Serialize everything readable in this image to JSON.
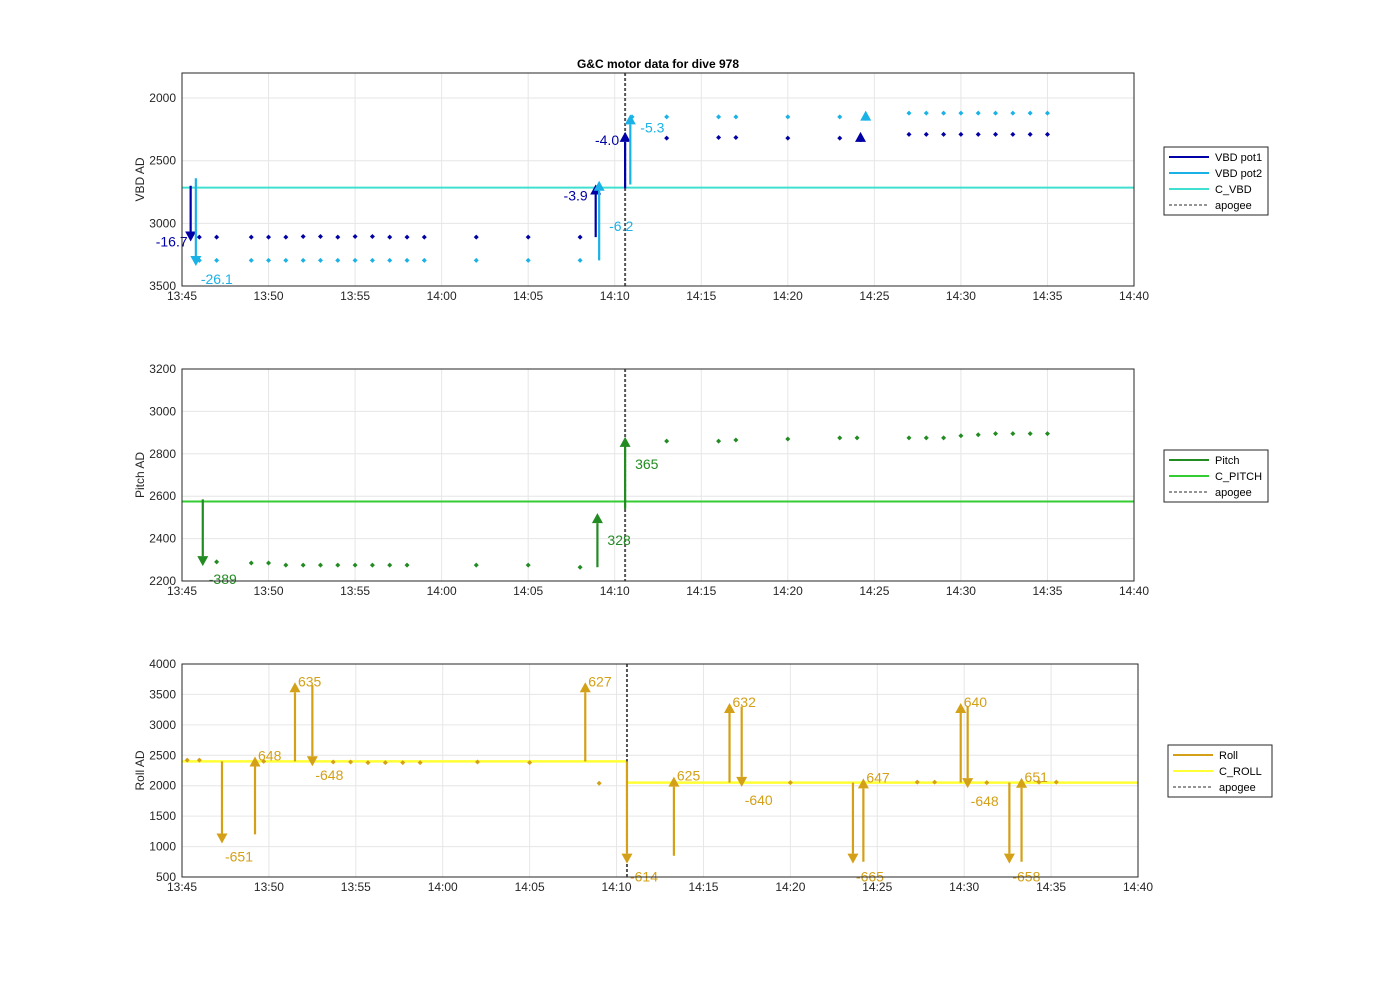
{
  "figure": {
    "title": "G&C motor data for dive 978"
  },
  "chart_data": [
    {
      "type": "scatter",
      "id": "vbd",
      "ylabel": "VBD AD",
      "ylim": [
        3500,
        1800
      ],
      "yticks": [
        2000,
        2500,
        3000,
        3500
      ],
      "xlim": [
        "13:45",
        "14:40"
      ],
      "xticks": [
        "13:45",
        "13:50",
        "13:55",
        "14:00",
        "14:05",
        "14:10",
        "14:15",
        "14:20",
        "14:25",
        "14:30",
        "14:35",
        "14:40"
      ],
      "grid": true,
      "legend_position": "right",
      "legend": [
        "VBD pot1",
        "VBD pot2",
        "C_VBD",
        "apogee"
      ],
      "colors": {
        "pot1": "#0000a6",
        "pot2": "#1ab2e6",
        "c_vbd": "#40e0d0",
        "apogee": "#555555"
      },
      "apogee": "14:10.6",
      "reference_lines": [
        {
          "name": "C_VBD",
          "y": 2715
        }
      ],
      "series": [
        {
          "name": "VBD pot1",
          "x": [
            "13:46",
            "13:47",
            "13:49",
            "13:50",
            "13:51",
            "13:52",
            "13:53",
            "13:54",
            "13:55",
            "13:56",
            "13:57",
            "13:58",
            "13:59",
            "14:02",
            "14:05",
            "14:08",
            "14:13",
            "14:16",
            "14:17",
            "14:20",
            "14:23",
            "14:27",
            "14:28",
            "14:29",
            "14:30",
            "14:31",
            "14:32",
            "14:33",
            "14:34",
            "14:35"
          ],
          "values": [
            3110,
            3110,
            3110,
            3110,
            3110,
            3105,
            3105,
            3110,
            3105,
            3105,
            3110,
            3110,
            3110,
            3110,
            3110,
            3110,
            2320,
            2315,
            2315,
            2320,
            2320,
            2290,
            2290,
            2290,
            2290,
            2290,
            2290,
            2290,
            2290,
            2290
          ]
        },
        {
          "name": "VBD pot2",
          "x": [
            "13:46",
            "13:47",
            "13:49",
            "13:50",
            "13:51",
            "13:52",
            "13:53",
            "13:54",
            "13:55",
            "13:56",
            "13:57",
            "13:58",
            "13:59",
            "14:02",
            "14:05",
            "14:08",
            "14:11",
            "14:13",
            "14:16",
            "14:17",
            "14:20",
            "14:23",
            "14:27",
            "14:28",
            "14:29",
            "14:30",
            "14:31",
            "14:32",
            "14:33",
            "14:34",
            "14:35"
          ],
          "values": [
            3295,
            3295,
            3295,
            3295,
            3295,
            3295,
            3295,
            3295,
            3295,
            3295,
            3295,
            3295,
            3295,
            3295,
            3295,
            3295,
            2150,
            2150,
            2150,
            2150,
            2150,
            2150,
            2120,
            2120,
            2120,
            2120,
            2120,
            2120,
            2120,
            2120,
            2120
          ]
        }
      ],
      "moves": [
        {
          "series": "VBD pot1",
          "x": "13:45.5",
          "from": 2700,
          "to": 3145,
          "label": "-16.7"
        },
        {
          "series": "VBD pot2",
          "x": "13:45.8",
          "from": 2640,
          "to": 3340,
          "label": "-26.1"
        },
        {
          "series": "VBD pot1",
          "x": "14:08.9",
          "from": 3110,
          "to": 2690,
          "label": "-3.9"
        },
        {
          "series": "VBD pot2",
          "x": "14:09.1",
          "from": 3295,
          "to": 2660,
          "label": "-6.2"
        },
        {
          "series": "VBD pot1",
          "x": "14:10.6",
          "from": 2720,
          "to": 2270,
          "label": "-4.0"
        },
        {
          "series": "VBD pot2",
          "x": "14:10.9",
          "from": 2690,
          "to": 2130,
          "label": "-5.3"
        },
        {
          "series": "VBD pot1",
          "x": "14:24.2",
          "from": 2300,
          "to": 2270,
          "label": ""
        },
        {
          "series": "VBD pot2",
          "x": "14:24.5",
          "from": 2140,
          "to": 2100,
          "label": ""
        }
      ]
    },
    {
      "type": "scatter",
      "id": "pitch",
      "ylabel": "Pitch AD",
      "ylim": [
        2200,
        3200
      ],
      "yticks": [
        2200,
        2400,
        2600,
        2800,
        3000,
        3200
      ],
      "xlim": [
        "13:45",
        "14:40"
      ],
      "xticks": [
        "13:45",
        "13:50",
        "13:55",
        "14:00",
        "14:05",
        "14:10",
        "14:15",
        "14:20",
        "14:25",
        "14:30",
        "14:35",
        "14:40"
      ],
      "grid": true,
      "legend_position": "right",
      "legend": [
        "Pitch",
        "C_PITCH",
        "apogee"
      ],
      "colors": {
        "pitch": "#228b22",
        "c_pitch": "#33cc33",
        "apogee": "#555555"
      },
      "apogee": "14:10.6",
      "reference_lines": [
        {
          "name": "C_PITCH",
          "y": 2575
        }
      ],
      "series": [
        {
          "name": "Pitch",
          "x": [
            "13:47",
            "13:49",
            "13:50",
            "13:51",
            "13:52",
            "13:53",
            "13:54",
            "13:55",
            "13:56",
            "13:57",
            "13:58",
            "14:02",
            "14:05",
            "14:08",
            "14:13",
            "14:16",
            "14:17",
            "14:20",
            "14:23",
            "14:24",
            "14:27",
            "14:28",
            "14:29",
            "14:30",
            "14:31",
            "14:32",
            "14:33",
            "14:34",
            "14:35"
          ],
          "values": [
            2290,
            2285,
            2285,
            2275,
            2275,
            2275,
            2275,
            2275,
            2275,
            2275,
            2275,
            2275,
            2275,
            2265,
            2860,
            2860,
            2865,
            2870,
            2875,
            2875,
            2875,
            2875,
            2875,
            2885,
            2890,
            2895,
            2895,
            2895,
            2895
          ]
        }
      ],
      "moves": [
        {
          "series": "Pitch",
          "x": "13:46.2",
          "from": 2585,
          "to": 2270,
          "label": "-389"
        },
        {
          "series": "Pitch",
          "x": "14:09.0",
          "from": 2265,
          "to": 2520,
          "label": "328"
        },
        {
          "series": "Pitch",
          "x": "14:10.6",
          "from": 2540,
          "to": 2880,
          "label": "365"
        }
      ]
    },
    {
      "type": "scatter",
      "id": "roll",
      "ylabel": "Roll AD",
      "ylim": [
        500,
        4000
      ],
      "yticks": [
        500,
        1000,
        1500,
        2000,
        2500,
        3000,
        3500,
        4000
      ],
      "xlim": [
        "13:45",
        "14:40"
      ],
      "xticks": [
        "13:45",
        "13:50",
        "13:55",
        "14:00",
        "14:05",
        "14:10",
        "14:15",
        "14:20",
        "14:25",
        "14:30",
        "14:35",
        "14:40"
      ],
      "grid": true,
      "legend_position": "right",
      "legend": [
        "Roll",
        "C_ROLL",
        "apogee"
      ],
      "colors": {
        "roll": "#d4a017",
        "c_roll": "#ffff33",
        "apogee": "#555555"
      },
      "apogee": "14:10.6",
      "reference_lines": [
        {
          "name": "C_ROLL",
          "segments": [
            {
              "from": "13:45",
              "to": "14:10.6",
              "y": 2400
            },
            {
              "from": "14:10.6",
              "to": "14:40",
              "y": 2050
            }
          ]
        }
      ],
      "series": [
        {
          "name": "Roll",
          "x": [
            "13:45.3",
            "13:46",
            "13:49.7",
            "13:53.7",
            "13:54.7",
            "13:55.7",
            "13:56.7",
            "13:57.7",
            "13:58.7",
            "14:02",
            "14:05",
            "14:09",
            "14:20",
            "14:27.3",
            "14:28.3",
            "14:31.3",
            "14:34.3",
            "14:35.3"
          ],
          "values": [
            2420,
            2420,
            2400,
            2390,
            2390,
            2380,
            2380,
            2380,
            2380,
            2390,
            2380,
            2040,
            2050,
            2060,
            2060,
            2050,
            2060,
            2060
          ]
        }
      ],
      "moves": [
        {
          "series": "Roll",
          "x": "13:47.3",
          "from": 2400,
          "to": 1050,
          "label": "-651"
        },
        {
          "series": "Roll",
          "x": "13:49.2",
          "from": 1200,
          "to": 2480,
          "label": "648"
        },
        {
          "series": "Roll",
          "x": "13:51.5",
          "from": 2400,
          "to": 3700,
          "label": "635"
        },
        {
          "series": "Roll",
          "x": "13:52.5",
          "from": 3650,
          "to": 2320,
          "label": "-648"
        },
        {
          "series": "Roll",
          "x": "14:08.2",
          "from": 2400,
          "to": 3700,
          "label": "627"
        },
        {
          "series": "Roll",
          "x": "14:10.6",
          "from": 2400,
          "to": 720,
          "label": "-614"
        },
        {
          "series": "Roll",
          "x": "14:13.3",
          "from": 850,
          "to": 2150,
          "label": "625"
        },
        {
          "series": "Roll",
          "x": "14:16.5",
          "from": 2050,
          "to": 3360,
          "label": "632"
        },
        {
          "series": "Roll",
          "x": "14:17.2",
          "from": 3300,
          "to": 1980,
          "label": "-640"
        },
        {
          "series": "Roll",
          "x": "14:23.6",
          "from": 2050,
          "to": 720,
          "label": "-665"
        },
        {
          "series": "Roll",
          "x": "14:24.2",
          "from": 750,
          "to": 2120,
          "label": "647"
        },
        {
          "series": "Roll",
          "x": "14:29.8",
          "from": 2050,
          "to": 3360,
          "label": "640"
        },
        {
          "series": "Roll",
          "x": "14:30.2",
          "from": 3300,
          "to": 1960,
          "label": "-648"
        },
        {
          "series": "Roll",
          "x": "14:32.6",
          "from": 2050,
          "to": 720,
          "label": "-658"
        },
        {
          "series": "Roll",
          "x": "14:33.3",
          "from": 750,
          "to": 2130,
          "label": "651"
        }
      ]
    }
  ]
}
